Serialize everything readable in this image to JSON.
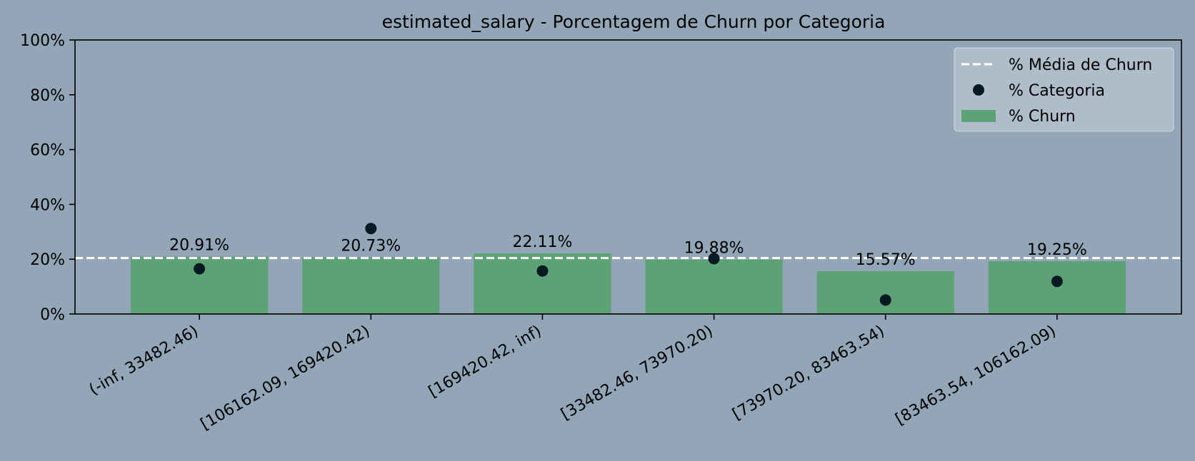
{
  "chart_data": {
    "type": "bar",
    "title": "estimated_salary - Porcentagem de Churn por Categoria",
    "xlabel": "",
    "ylabel": "",
    "ylim": [
      0,
      100
    ],
    "yticks": [
      "0%",
      "20%",
      "40%",
      "60%",
      "80%",
      "100%"
    ],
    "ytick_values": [
      0,
      20,
      40,
      60,
      80,
      100
    ],
    "categories": [
      "(-inf, 33482.46)",
      "[106162.09, 169420.42)",
      "[169420.42, inf)",
      "[33482.46, 73970.20)",
      "[73970.20, 83463.54)",
      "[83463.54, 106162.09)"
    ],
    "series": [
      {
        "name": "% Churn",
        "kind": "bar",
        "color": "#5ca274",
        "values": [
          20.91,
          20.73,
          22.11,
          19.88,
          15.57,
          19.25
        ],
        "labels": [
          "20.91%",
          "20.73%",
          "22.11%",
          "19.88%",
          "15.57%",
          "19.25%"
        ]
      },
      {
        "name": "% Categoria",
        "kind": "scatter",
        "color": "#061a24",
        "values": [
          16.5,
          31.2,
          15.7,
          20.2,
          5.1,
          11.9
        ]
      },
      {
        "name": "% Média de Churn",
        "kind": "hline",
        "color": "#ffffff",
        "value": 20.4
      }
    ],
    "legend": {
      "position": "top-right",
      "entries": [
        "% Média de Churn",
        "% Categoria",
        "% Churn"
      ]
    },
    "grid": false,
    "colors": {
      "background": "#93a6b7",
      "legend_bg": "#b4c0cc"
    }
  }
}
